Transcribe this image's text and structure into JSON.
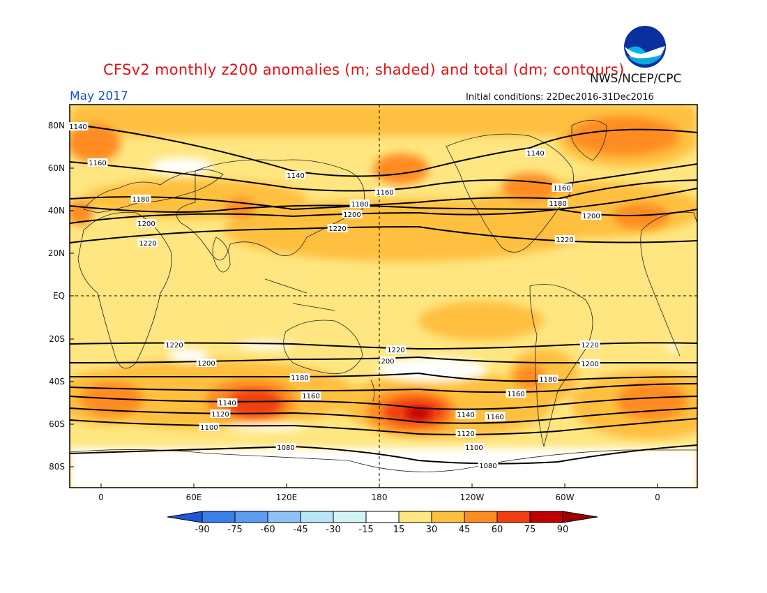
{
  "title": "CFSv2 monthly z200 anomalies (m; shaded) and total (dm; contours)",
  "month": "May 2017",
  "agency": "NWS/NCEP/CPC",
  "initial_conditions": "Initial conditions: 22Dec2016-31Dec2016",
  "logo_text": "NOAA",
  "lat_labels": [
    "80N",
    "60N",
    "40N",
    "20N",
    "EQ",
    "20S",
    "40S",
    "60S",
    "80S"
  ],
  "lon_labels": [
    "0",
    "60E",
    "120E",
    "180",
    "120W",
    "60W",
    "0"
  ],
  "colorbar": {
    "labels": [
      "-90",
      "-75",
      "-60",
      "-45",
      "-30",
      "-15",
      "15",
      "30",
      "45",
      "60",
      "75",
      "90"
    ],
    "colors": [
      "#1f56d8",
      "#3a7ee8",
      "#5b9cf0",
      "#8cc2f6",
      "#b6e6f8",
      "#d2f4f6",
      "#ffffff",
      "#ffe680",
      "#ffc040",
      "#ff8c20",
      "#f04010",
      "#c00000",
      "#a00000"
    ]
  },
  "contour_labels": [
    {
      "text": "1140"
    },
    {
      "text": "1160"
    },
    {
      "text": "1180"
    },
    {
      "text": "1200"
    },
    {
      "text": "1220"
    },
    {
      "text": "1140"
    },
    {
      "text": "1160"
    },
    {
      "text": "1180"
    },
    {
      "text": "1200"
    },
    {
      "text": "1220"
    },
    {
      "text": "1140"
    },
    {
      "text": "1160"
    },
    {
      "text": "1180"
    },
    {
      "text": "1200"
    },
    {
      "text": "1220"
    },
    {
      "text": "1220"
    },
    {
      "text": "1200"
    },
    {
      "text": "1180"
    },
    {
      "text": "1160"
    },
    {
      "text": "1140"
    },
    {
      "text": "1120"
    },
    {
      "text": "1100"
    },
    {
      "text": "1080"
    },
    {
      "text": "1220"
    },
    {
      "text": "200"
    },
    {
      "text": "1160"
    },
    {
      "text": "1140"
    },
    {
      "text": "1120"
    },
    {
      "text": "1100"
    },
    {
      "text": "1080"
    },
    {
      "text": "1220"
    },
    {
      "text": "1200"
    },
    {
      "text": "1180"
    },
    {
      "text": "1160"
    }
  ]
}
